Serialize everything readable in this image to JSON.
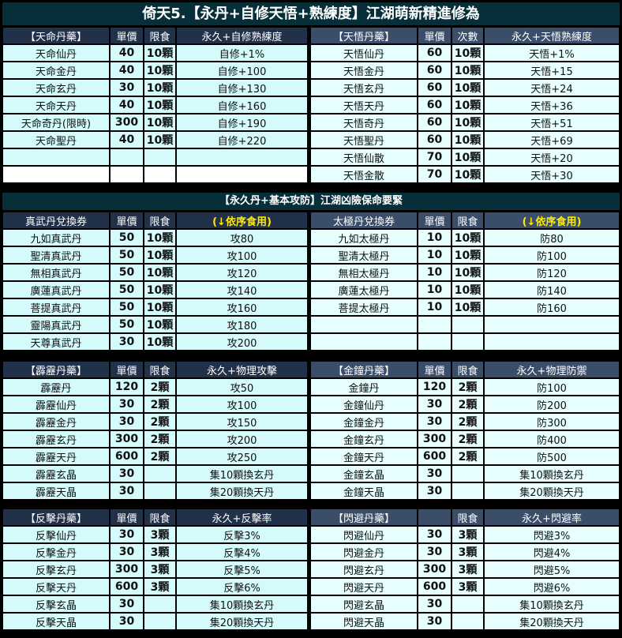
{
  "title": "倚天5.【永丹+自修天悟+熟練度】江湖萌新精進修為",
  "section2_title": "【永久丹+基本攻防】江湖凶險保命要緊",
  "colors": {
    "title_bg": "#062f39",
    "header_left": "#22314a",
    "header_right": "#3a4d69",
    "cell_left": "#d4fafc",
    "cell_right": "#e6fefe",
    "highlight": "#ffea00"
  },
  "blocks": [
    {
      "left": {
        "header": [
          "【天命丹藥】",
          "單價",
          "限食",
          "永久+自修熟練度"
        ],
        "rows": [
          [
            "天命仙丹",
            "40",
            "10顆",
            "自修+1%"
          ],
          [
            "天命金丹",
            "40",
            "10顆",
            "自修+100"
          ],
          [
            "天命玄丹",
            "30",
            "10顆",
            "自修+130"
          ],
          [
            "天命天丹",
            "40",
            "10顆",
            "自修+160"
          ],
          [
            "天命奇丹(限時)",
            "300",
            "10顆",
            "自修+190"
          ],
          [
            "天命聖丹",
            "40",
            "10顆",
            "自修+220"
          ],
          [
            "",
            "",
            "",
            ""
          ],
          [
            "",
            "",
            "",
            ""
          ]
        ]
      },
      "right": {
        "header": [
          "【天悟丹藥】",
          "單價",
          "次數",
          "永久+天悟熟練度"
        ],
        "rows": [
          [
            "天悟仙丹",
            "60",
            "10顆",
            "天悟+1%"
          ],
          [
            "天悟金丹",
            "60",
            "10顆",
            "天悟+15"
          ],
          [
            "天悟玄丹",
            "60",
            "10顆",
            "天悟+24"
          ],
          [
            "天悟天丹",
            "60",
            "10顆",
            "天悟+36"
          ],
          [
            "天悟奇丹",
            "60",
            "10顆",
            "天悟+51"
          ],
          [
            "天悟聖丹",
            "60",
            "10顆",
            "天悟+69"
          ],
          [
            "天悟仙散",
            "70",
            "10顆",
            "天悟+20"
          ],
          [
            "天悟金散",
            "70",
            "10顆",
            "天悟+30"
          ]
        ]
      }
    },
    {
      "left": {
        "header": [
          "真武丹兌換券",
          "單價",
          "限食",
          "(↓依序食用)"
        ],
        "rows": [
          [
            "九如真武丹",
            "50",
            "10顆",
            "攻80"
          ],
          [
            "聖清真武丹",
            "50",
            "10顆",
            "攻100"
          ],
          [
            "無相真武丹",
            "50",
            "10顆",
            "攻120"
          ],
          [
            "廣蓮真武丹",
            "50",
            "10顆",
            "攻140"
          ],
          [
            "菩提真武丹",
            "50",
            "10顆",
            "攻160"
          ],
          [
            "靈陽真武丹",
            "50",
            "10顆",
            "攻180"
          ],
          [
            "天尊真武丹",
            "30",
            "10顆",
            "攻200"
          ]
        ]
      },
      "right": {
        "header": [
          "太極丹兌換券",
          "單價",
          "限食",
          "(↓依序食用)"
        ],
        "rows": [
          [
            "九如太極丹",
            "10",
            "10顆",
            "防80"
          ],
          [
            "聖清太極丹",
            "10",
            "10顆",
            "防100"
          ],
          [
            "無相太極丹",
            "10",
            "10顆",
            "防120"
          ],
          [
            "廣蓮太極丹",
            "10",
            "10顆",
            "防140"
          ],
          [
            "菩提太極丹",
            "10",
            "10顆",
            "防160"
          ],
          [
            "",
            "",
            "",
            ""
          ],
          [
            "",
            "",
            "",
            ""
          ]
        ]
      }
    },
    {
      "left": {
        "header": [
          "【霹靂丹藥】",
          "單價",
          "限食",
          "永久+物理攻擊"
        ],
        "rows": [
          [
            "霹靂丹",
            "120",
            "2顆",
            "攻50"
          ],
          [
            "霹靂仙丹",
            "30",
            "2顆",
            "攻100"
          ],
          [
            "霹靂金丹",
            "30",
            "2顆",
            "攻150"
          ],
          [
            "霹靂玄丹",
            "300",
            "2顆",
            "攻200"
          ],
          [
            "霹靂天丹",
            "600",
            "2顆",
            "攻250"
          ],
          [
            "霹靂玄晶",
            "30",
            "",
            "集10顆換玄丹"
          ],
          [
            "霹靂天晶",
            "30",
            "",
            "集20顆換天丹"
          ]
        ]
      },
      "right": {
        "header": [
          "【金鐘丹藥】",
          "單價",
          "限食",
          "永久+物理防禦"
        ],
        "rows": [
          [
            "金鐘丹",
            "120",
            "2顆",
            "防100"
          ],
          [
            "金鐘仙丹",
            "30",
            "2顆",
            "防200"
          ],
          [
            "金鐘金丹",
            "30",
            "2顆",
            "防300"
          ],
          [
            "金鐘玄丹",
            "300",
            "2顆",
            "防400"
          ],
          [
            "金鐘天丹",
            "600",
            "2顆",
            "防500"
          ],
          [
            "金鐘玄晶",
            "30",
            "",
            "集10顆換玄丹"
          ],
          [
            "金鐘天晶",
            "30",
            "",
            "集20顆換天丹"
          ]
        ]
      }
    },
    {
      "left": {
        "header": [
          "【反擊丹藥】",
          "單價",
          "限食",
          "永久+反擊率"
        ],
        "rows": [
          [
            "反擊仙丹",
            "30",
            "3顆",
            "反擊3%"
          ],
          [
            "反擊金丹",
            "30",
            "3顆",
            "反擊4%"
          ],
          [
            "反擊玄丹",
            "300",
            "3顆",
            "反擊5%"
          ],
          [
            "反擊天丹",
            "600",
            "3顆",
            "反擊6%"
          ],
          [
            "反擊玄晶",
            "30",
            "",
            "集10顆換玄丹"
          ],
          [
            "反擊天晶",
            "30",
            "",
            "集20顆換天丹"
          ]
        ]
      },
      "right": {
        "header": [
          "【閃避丹藥】",
          "",
          "限食",
          "永久+閃避率"
        ],
        "rows": [
          [
            "閃避仙丹",
            "30",
            "3顆",
            "閃避3%"
          ],
          [
            "閃避金丹",
            "30",
            "3顆",
            "閃避4%"
          ],
          [
            "閃避玄丹",
            "300",
            "3顆",
            "閃避5%"
          ],
          [
            "閃避天丹",
            "600",
            "3顆",
            "閃避6%"
          ],
          [
            "閃避玄晶",
            "30",
            "",
            "集10顆換玄丹"
          ],
          [
            "閃避天晶",
            "30",
            "",
            "集20顆換天丹"
          ]
        ]
      }
    }
  ]
}
